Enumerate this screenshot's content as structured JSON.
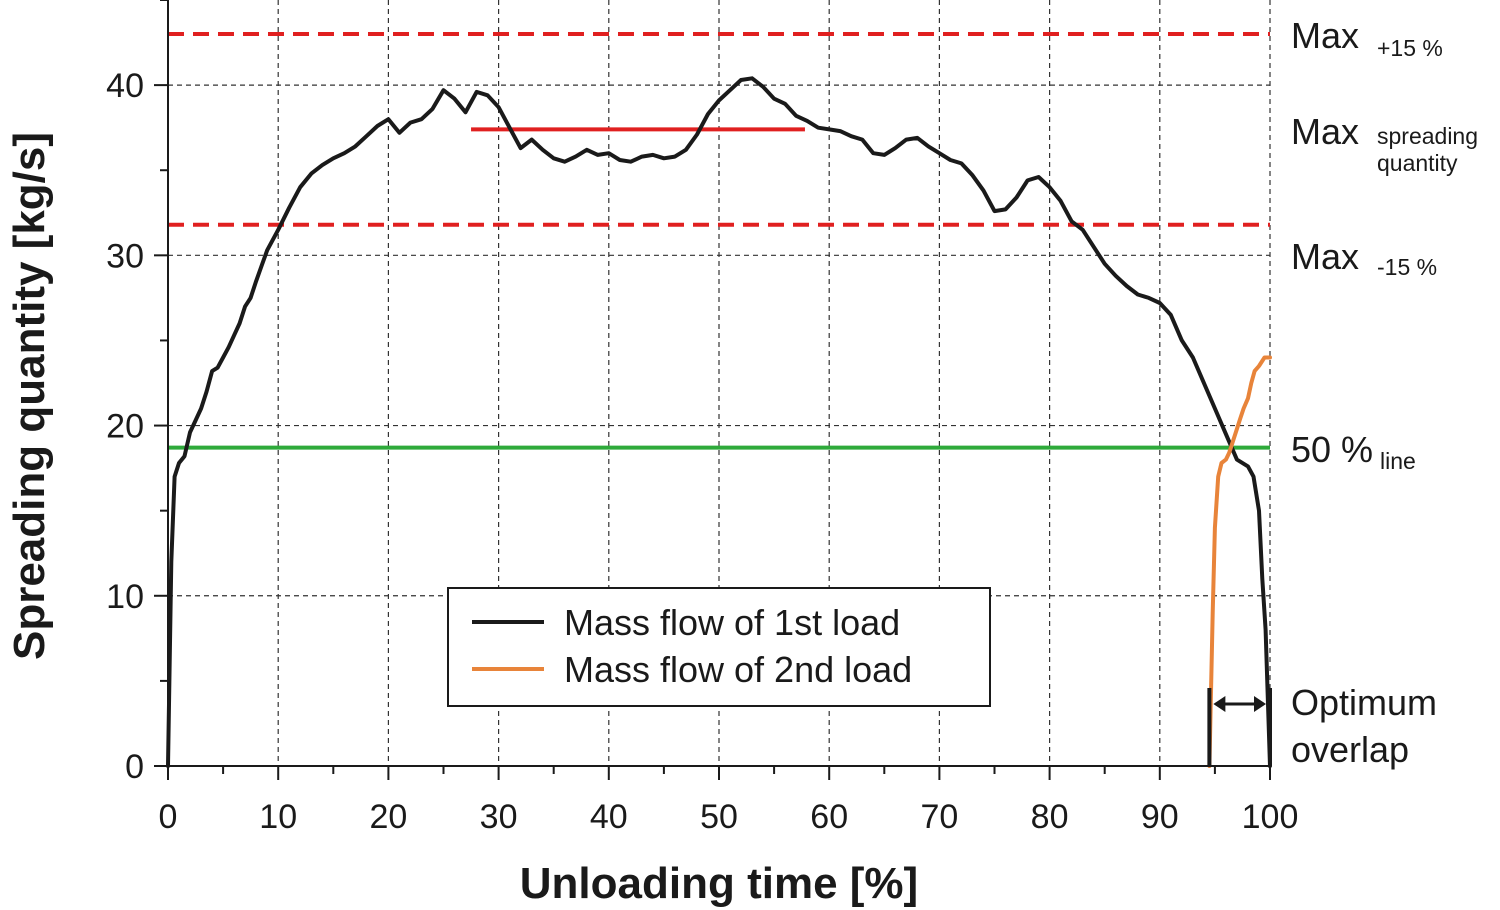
{
  "chart_data": {
    "type": "line",
    "xlabel": "Unloading time [%]",
    "ylabel": "Spreading quantity [kg/s]",
    "xlim": [
      0,
      100
    ],
    "ylim": [
      0,
      45
    ],
    "xticks": [
      0,
      10,
      20,
      30,
      40,
      50,
      60,
      70,
      80,
      90,
      100
    ],
    "yticks": [
      0,
      10,
      20,
      30,
      40
    ],
    "grid": true,
    "legend_position": "bottom-center",
    "series": [
      {
        "name": "Mass flow of 1st load",
        "color": "#1a1a1a",
        "x": [
          0,
          0.3,
          0.6,
          1,
          1.5,
          2,
          2.5,
          3,
          3.5,
          4,
          4.5,
          5,
          5.5,
          6,
          6.5,
          7,
          7.5,
          8,
          8.5,
          9,
          10,
          11,
          12,
          13,
          14,
          15,
          16,
          17,
          18,
          19,
          20,
          21,
          22,
          23,
          24,
          25,
          26,
          27,
          28,
          29,
          30,
          31,
          32,
          33,
          34,
          35,
          36,
          37,
          38,
          39,
          40,
          41,
          42,
          43,
          44,
          45,
          46,
          47,
          48,
          49,
          50,
          51,
          52,
          53,
          54,
          55,
          56,
          57,
          58,
          59,
          60,
          61,
          62,
          63,
          64,
          65,
          66,
          67,
          68,
          69,
          70,
          71,
          72,
          73,
          74,
          75,
          76,
          77,
          78,
          79,
          80,
          81,
          82,
          83,
          84,
          85,
          86,
          87,
          88,
          89,
          90,
          91,
          92,
          93,
          94,
          95,
          96,
          97,
          98,
          98.5,
          99,
          99.3,
          99.6,
          100
        ],
        "values": [
          0,
          12,
          17,
          17.8,
          18.2,
          19.6,
          20.3,
          21,
          22,
          23.2,
          23.4,
          24,
          24.6,
          25.3,
          26,
          27,
          27.5,
          28.5,
          29.4,
          30.3,
          31.5,
          32.8,
          34,
          34.8,
          35.3,
          35.7,
          36,
          36.4,
          37,
          37.6,
          38,
          37.2,
          37.8,
          38,
          38.6,
          39.7,
          39.2,
          38.4,
          39.6,
          39.4,
          38.7,
          37.5,
          36.3,
          36.8,
          36.2,
          35.7,
          35.5,
          35.8,
          36.2,
          35.9,
          36,
          35.6,
          35.5,
          35.8,
          35.9,
          35.7,
          35.8,
          36.2,
          37.1,
          38.3,
          39.1,
          39.7,
          40.3,
          40.4,
          39.9,
          39.2,
          38.9,
          38.2,
          37.9,
          37.5,
          37.4,
          37.3,
          37,
          36.8,
          36,
          35.9,
          36.3,
          36.8,
          36.9,
          36.4,
          36,
          35.6,
          35.4,
          34.7,
          33.8,
          32.6,
          32.7,
          33.4,
          34.4,
          34.6,
          34,
          33.2,
          32,
          31.5,
          30.5,
          29.5,
          28.8,
          28.2,
          27.7,
          27.5,
          27.2,
          26.5,
          25,
          24,
          22.5,
          21,
          19.5,
          18,
          17.6,
          17,
          15,
          11,
          8,
          0
        ]
      },
      {
        "name": "Mass flow of 2nd load",
        "color": "#e8843a",
        "x": [
          94.5,
          94.8,
          95,
          95.3,
          95.6,
          96,
          96.3,
          96.6,
          97,
          97.3,
          97.6,
          98,
          98.3,
          98.6,
          99,
          99.5,
          100
        ],
        "values": [
          0,
          9,
          14,
          17,
          17.8,
          18,
          18.4,
          19,
          19.8,
          20.4,
          21,
          21.6,
          22.5,
          23.2,
          23.5,
          24,
          24
        ]
      }
    ],
    "reference_lines": [
      {
        "name": "Max +15%",
        "y": 43,
        "color": "#e02020",
        "style": "dashed"
      },
      {
        "name": "Max -15%",
        "y": 31.8,
        "color": "#e02020",
        "style": "dashed"
      },
      {
        "name": "50% line",
        "y": 18.7,
        "color": "#2eaa3a",
        "style": "solid"
      },
      {
        "name": "Max spreading quantity",
        "y": 37.4,
        "x_start": 27.5,
        "x_end": 57.8,
        "color": "#e02020",
        "style": "solid"
      }
    ],
    "overlap_bracket": {
      "x_start": 94.5,
      "x_end": 100
    }
  },
  "annotations": {
    "max_plus": {
      "main": "Max",
      "sub": "+15 %"
    },
    "max_spreading": {
      "main": "Max",
      "sub1": "spreading",
      "sub2": "quantity"
    },
    "max_minus": {
      "main": "Max",
      "sub": "-15 %"
    },
    "fifty_line": {
      "main": "50 %",
      "sub": "line"
    },
    "overlap": {
      "line1": "Optimum",
      "line2": "overlap"
    }
  }
}
